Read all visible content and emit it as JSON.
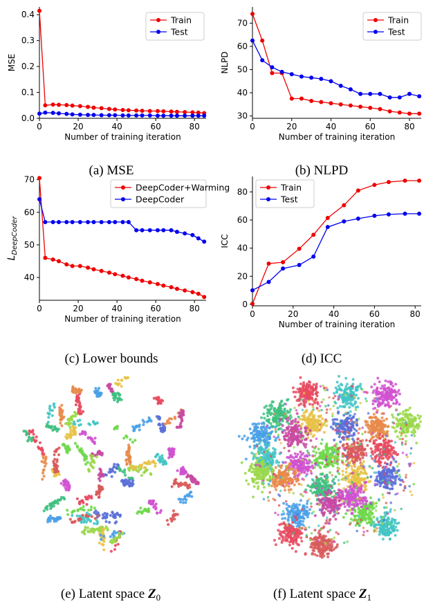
{
  "chart_data": [
    {
      "type": "line",
      "ylabel": "MSE",
      "xlabel": "Number of training iteration",
      "xlim": [
        0,
        86
      ],
      "ylim": [
        0,
        0.43
      ],
      "xticks": [
        "0",
        "20",
        "40",
        "60",
        "80"
      ],
      "xtick_values": [
        0,
        20,
        40,
        60,
        80
      ],
      "yticks": [
        "0.0",
        "0.1",
        "0.2",
        "0.3",
        "0.4"
      ],
      "ytick_values": [
        0,
        0.1,
        0.2,
        0.3,
        0.4
      ],
      "legend_position": "top-right",
      "caption": "(a) MSE",
      "series": [
        {
          "name": "Train",
          "color": "#ee0000",
          "x": [
            0,
            3,
            7,
            10,
            14,
            17,
            21,
            25,
            28,
            32,
            36,
            39,
            43,
            46,
            50,
            53,
            57,
            61,
            64,
            68,
            71,
            75,
            79,
            82,
            85
          ],
          "y": [
            0.415,
            0.05,
            0.053,
            0.052,
            0.051,
            0.049,
            0.047,
            0.044,
            0.041,
            0.039,
            0.036,
            0.034,
            0.032,
            0.031,
            0.03,
            0.029,
            0.028,
            0.028,
            0.027,
            0.026,
            0.025,
            0.024,
            0.023,
            0.022,
            0.02
          ]
        },
        {
          "name": "Test",
          "color": "#0000ee",
          "x": [
            0,
            3,
            7,
            10,
            14,
            17,
            21,
            25,
            28,
            32,
            36,
            39,
            43,
            46,
            50,
            53,
            57,
            61,
            64,
            68,
            71,
            75,
            79,
            82,
            85
          ],
          "y": [
            0.018,
            0.022,
            0.021,
            0.019,
            0.017,
            0.015,
            0.014,
            0.013,
            0.013,
            0.012,
            0.012,
            0.012,
            0.011,
            0.011,
            0.011,
            0.011,
            0.011,
            0.01,
            0.01,
            0.01,
            0.01,
            0.01,
            0.01,
            0.01,
            0.01
          ]
        }
      ]
    },
    {
      "type": "line",
      "ylabel": "NLPD",
      "xlabel": "Number of training iteration",
      "xlim": [
        0,
        86
      ],
      "ylim": [
        29,
        77
      ],
      "xticks": [
        "0",
        "20",
        "40",
        "60",
        "80"
      ],
      "xtick_values": [
        0,
        20,
        40,
        60,
        80
      ],
      "yticks": [
        "30",
        "40",
        "50",
        "60",
        "70"
      ],
      "ytick_values": [
        30,
        40,
        50,
        60,
        70
      ],
      "legend_position": "top-right",
      "caption": "(b) NLPD",
      "series": [
        {
          "name": "Train",
          "color": "#ee0000",
          "x": [
            0,
            5,
            10,
            15,
            20,
            25,
            30,
            35,
            40,
            45,
            50,
            55,
            60,
            65,
            70,
            75,
            80,
            85
          ],
          "y": [
            74,
            62.5,
            48.5,
            48.5,
            37.5,
            37.5,
            36.5,
            36,
            35.5,
            35,
            34.5,
            34,
            33.5,
            33,
            32,
            31.5,
            31,
            31
          ]
        },
        {
          "name": "Test",
          "color": "#0000ee",
          "x": [
            0,
            5,
            10,
            15,
            20,
            25,
            30,
            35,
            40,
            45,
            50,
            55,
            60,
            65,
            70,
            75,
            80,
            85
          ],
          "y": [
            62.5,
            54,
            51,
            49,
            48,
            47,
            46.5,
            46,
            45,
            43,
            41.5,
            39.5,
            39.5,
            39.5,
            38,
            38,
            39.5,
            38.5
          ]
        }
      ]
    },
    {
      "type": "line",
      "ylabel": "L_DeepCoder",
      "xlabel": "Number of training iteration",
      "xlim": [
        0,
        86
      ],
      "ylim": [
        33,
        71
      ],
      "xticks": [
        "0",
        "20",
        "40",
        "60",
        "80"
      ],
      "xtick_values": [
        0,
        20,
        40,
        60,
        80
      ],
      "yticks": [
        "40",
        "50",
        "60",
        "70"
      ],
      "ytick_values": [
        40,
        50,
        60,
        70
      ],
      "legend_position": "top-right",
      "caption": "(c) Lower bounds",
      "series": [
        {
          "name": "DeepCoder+Warming",
          "color": "#ee0000",
          "x": [
            0,
            3,
            7,
            10,
            14,
            17,
            21,
            25,
            28,
            32,
            36,
            39,
            43,
            46,
            50,
            53,
            57,
            61,
            64,
            68,
            71,
            75,
            79,
            82,
            85
          ],
          "y": [
            70.5,
            46,
            45.5,
            45,
            44,
            43.5,
            43.5,
            43,
            42.5,
            42,
            41.5,
            41,
            40.5,
            40,
            39.5,
            39,
            38.5,
            38,
            37.5,
            37,
            36.5,
            36,
            35.5,
            35,
            34
          ]
        },
        {
          "name": "DeepCoder",
          "color": "#0000ee",
          "x": [
            0,
            3,
            7,
            10,
            14,
            17,
            21,
            25,
            28,
            32,
            36,
            39,
            43,
            46,
            50,
            53,
            57,
            61,
            64,
            68,
            71,
            75,
            79,
            82,
            85
          ],
          "y": [
            64,
            57,
            57,
            57,
            57,
            57,
            57,
            57,
            57,
            57,
            57,
            57,
            57,
            57,
            54.5,
            54.5,
            54.5,
            54.5,
            54.5,
            54.5,
            54,
            53.5,
            53,
            52,
            51
          ]
        }
      ]
    },
    {
      "type": "line",
      "ylabel": "ICC",
      "xlabel": "Number of training iteration",
      "xlim": [
        0,
        83
      ],
      "ylim": [
        -1,
        91
      ],
      "xticks": [
        "0",
        "20",
        "40",
        "60",
        "80"
      ],
      "xtick_values": [
        0,
        20,
        40,
        60,
        80
      ],
      "yticks": [
        "0",
        "20",
        "40",
        "60",
        "80"
      ],
      "ytick_values": [
        0,
        20,
        40,
        60,
        80
      ],
      "legend_position": "top-left",
      "caption": "(d) ICC",
      "series": [
        {
          "name": "Train",
          "color": "#ee0000",
          "x": [
            0,
            8,
            15,
            23,
            30,
            37,
            45,
            52,
            60,
            67,
            75,
            82
          ],
          "y": [
            0.5,
            29,
            30,
            39.5,
            49.5,
            61.5,
            70.5,
            81,
            85,
            87,
            88,
            88
          ]
        },
        {
          "name": "Test",
          "color": "#0000ee",
          "x": [
            0,
            8,
            15,
            23,
            30,
            37,
            45,
            52,
            60,
            67,
            75,
            82
          ],
          "y": [
            10,
            16,
            25.5,
            28,
            34,
            55,
            59,
            61,
            63,
            64,
            64.5,
            64.5
          ]
        }
      ]
    }
  ],
  "latent_panels": [
    {
      "caption_prefix": "(e) Latent space ",
      "caption_symbol": "Z",
      "caption_subscript": "0"
    },
    {
      "caption_prefix": "(f) Latent space ",
      "caption_symbol": "Z",
      "caption_subscript": "1"
    }
  ],
  "palette": [
    "#e84a5f",
    "#44c4c4",
    "#d052d0",
    "#3fbf7f",
    "#e8c247",
    "#5a6fd8",
    "#e88a4a",
    "#9bd84a",
    "#4aa0e8",
    "#c84aa0",
    "#6ed84a",
    "#d85a5a"
  ]
}
